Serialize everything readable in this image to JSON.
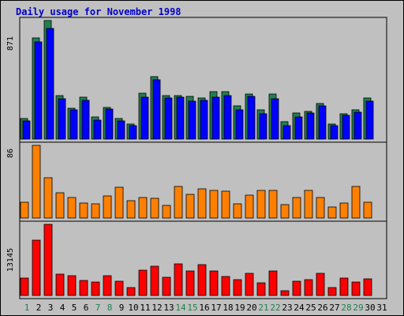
{
  "chart_data": {
    "type": "bar",
    "title": "Daily usage for November 1998",
    "categories": [
      "1",
      "2",
      "3",
      "4",
      "5",
      "6",
      "7",
      "8",
      "9",
      "10",
      "11",
      "12",
      "13",
      "14",
      "15",
      "16",
      "17",
      "18",
      "19",
      "20",
      "21",
      "22",
      "23",
      "24",
      "25",
      "26",
      "27",
      "28",
      "29",
      "30",
      "31"
    ],
    "weekend_categories": [
      "1",
      "7",
      "8",
      "14",
      "15",
      "21",
      "22",
      "28",
      "29"
    ],
    "panels": [
      {
        "ymax_label": "871",
        "ylim": [
          0,
          871
        ],
        "series": [
          {
            "color": "#208050",
            "values": [
              149,
              741,
              871,
              318,
              225,
              305,
              160,
              231,
              153,
              110,
              338,
              461,
              317,
              322,
              313,
              300,
              350,
              351,
              241,
              330,
              213,
              330,
              128,
              191,
              206,
              263,
              108,
              184,
              212,
              301
            ]
          },
          {
            "color": "#0000ff",
            "values": [
              136,
              712,
              814,
              295,
              212,
              287,
              142,
              220,
              134,
              98,
              310,
              435,
              300,
              305,
              281,
              282,
              310,
              320,
              212,
              312,
              188,
              296,
              100,
              160,
              190,
              243,
              100,
              172,
              200,
              276
            ]
          }
        ]
      },
      {
        "ymax_label": "86",
        "ylim": [
          0,
          86
        ],
        "series": [
          {
            "color": "#ff8000",
            "values": [
              19,
              86,
              48,
              30,
              24,
              18,
              17,
              26,
              36,
              21,
              24,
              23,
              15,
              37,
              28,
              35,
              33,
              32,
              17,
              27,
              33,
              33,
              16,
              24,
              33,
              24,
              13,
              18,
              37,
              19
            ]
          }
        ]
      },
      {
        "ymax_label": "13145",
        "ylim": [
          0,
          13145
        ],
        "series": [
          {
            "color": "#ff0000",
            "values": [
              3257,
              10295,
              13145,
              3998,
              3664,
              2710,
              2537,
              3612,
              2596,
              1497,
              4648,
              5364,
              3394,
              5778,
              4574,
              5760,
              4532,
              3516,
              2878,
              4030,
              2315,
              4538,
              821,
              2643,
              2869,
              4148,
              1452,
              3286,
              2492,
              3062
            ]
          }
        ]
      }
    ]
  }
}
